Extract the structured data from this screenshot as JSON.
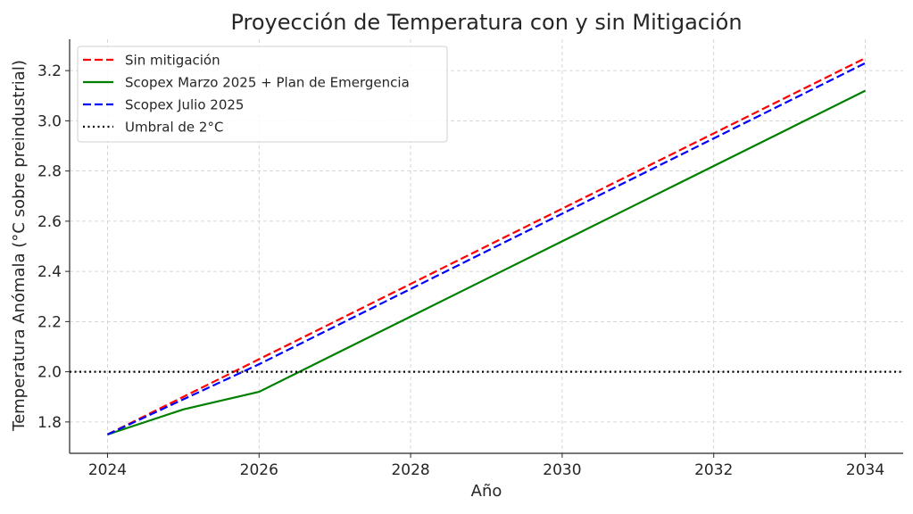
{
  "chart_data": {
    "type": "line",
    "title": "Proyección de Temperatura con y sin Mitigación",
    "xlabel": "Año",
    "ylabel": "Temperatura Anómala (°C sobre preindustrial)",
    "x": [
      2024,
      2025,
      2026,
      2027,
      2028,
      2029,
      2030,
      2031,
      2032,
      2033,
      2034
    ],
    "xlim": [
      2023.5,
      2034.5
    ],
    "ylim": [
      1.675,
      3.325
    ],
    "xticks": [
      2024,
      2026,
      2028,
      2030,
      2032,
      2034
    ],
    "xtick_labels": [
      "2024",
      "2026",
      "2028",
      "2030",
      "2032",
      "2034"
    ],
    "yticks": [
      1.8,
      2.0,
      2.2,
      2.4,
      2.6,
      2.8,
      3.0,
      3.2
    ],
    "ytick_labels": [
      "1.8",
      "2.0",
      "2.2",
      "2.4",
      "2.6",
      "2.8",
      "3.0",
      "3.2"
    ],
    "grid": true,
    "legend_position": "top-left",
    "series": [
      {
        "name": "Sin mitigación",
        "color": "#ff0000",
        "style": "dashed",
        "values": [
          1.75,
          1.9,
          2.05,
          2.2,
          2.35,
          2.5,
          2.65,
          2.8,
          2.95,
          3.1,
          3.25
        ]
      },
      {
        "name": "Scopex Marzo 2025 + Plan de Emergencia",
        "color": "#008000",
        "style": "solid",
        "values": [
          1.75,
          1.85,
          1.92,
          2.07,
          2.22,
          2.37,
          2.52,
          2.67,
          2.82,
          2.97,
          3.12
        ]
      },
      {
        "name": "Scopex Julio 2025",
        "color": "#0000ff",
        "style": "dashed",
        "values": [
          1.75,
          1.89,
          2.03,
          2.18,
          2.33,
          2.48,
          2.63,
          2.78,
          2.93,
          3.08,
          3.23
        ]
      }
    ],
    "hlines": [
      {
        "name": "Umbral de 2°C",
        "y": 2.0,
        "color": "#000000",
        "style": "dotted"
      }
    ]
  }
}
